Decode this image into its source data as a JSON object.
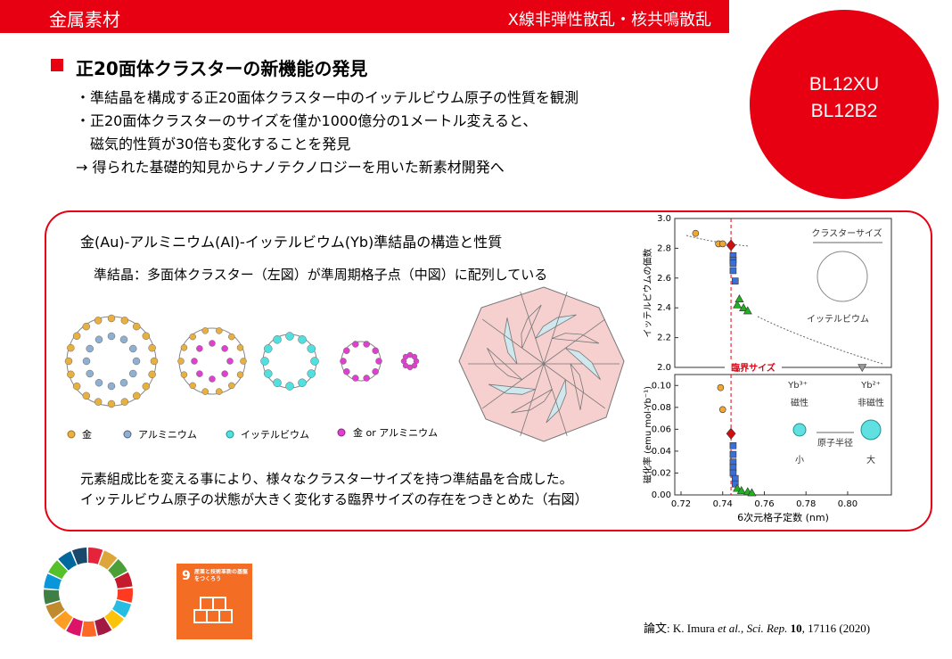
{
  "header": {
    "category": "金属素材",
    "technique": "X線非弾性散乱・核共鳴散乱"
  },
  "badge": {
    "lines": [
      "BL12XU",
      "BL12B2"
    ]
  },
  "heading": "正20面体クラスターの新機能の発見",
  "bullets": [
    "・準結晶を構成する正20面体クラスター中のイッテルビウム原子の性質を観測",
    "・正20面体クラスターのサイズを僅か1000億分の1メートル変えると、",
    "　磁気的性質が30倍も変化することを発見",
    "→ 得られた基礎的知見からナノテクノロジーを用いた新素材開発へ"
  ],
  "panel": {
    "title": "金(Au)-アルミニウム(Al)-イッテルビウム(Yb)準結晶の構造と性質",
    "subtitle": "準結晶：多面体クラスター（左図）が準周期格子点（中図）に配列している",
    "legend": [
      "金",
      "アルミニウム",
      "イッテルビウム",
      "金 or アルミニウム"
    ],
    "notes": [
      "元素組成比を変える事により、様々なクラスターサイズを持つ準結晶を合成した。",
      "イッテルビウム原子の状態が大きく変化する臨界サイズの存在をつきとめた（右図）"
    ]
  },
  "chart_data": [
    {
      "type": "scatter",
      "ylabel": "イッテルビウムの価数",
      "xlim": [
        0.717,
        0.821
      ],
      "ylim": [
        2.0,
        3.0
      ],
      "yticks": [
        {
          "value": 2.0,
          "label": "2.0"
        },
        2.2,
        2.4,
        2.6,
        2.8,
        {
          "value": 3.0,
          "label": "3.0"
        }
      ],
      "vline": 0.744,
      "annotations": [
        "臨界サイズ",
        "クラスターサイズ",
        "イッテルビウム"
      ],
      "series": [
        {
          "marker": "circle",
          "color": "#f0a830",
          "x": [
            0.727,
            0.738,
            0.74
          ],
          "values": [
            2.9,
            2.83,
            2.83
          ]
        },
        {
          "marker": "diamond",
          "color": "#d01010",
          "x": [
            0.744
          ],
          "values": [
            2.82
          ]
        },
        {
          "marker": "square",
          "color": "#3a6fd8",
          "x": [
            0.745,
            0.745,
            0.745,
            0.745,
            0.746
          ],
          "values": [
            2.75,
            2.72,
            2.7,
            2.65,
            2.58
          ]
        },
        {
          "marker": "triangle",
          "color": "#20b020",
          "x": [
            0.747,
            0.748,
            0.75,
            0.752
          ],
          "values": [
            2.42,
            2.46,
            2.4,
            2.38
          ]
        },
        {
          "marker": "triangle-down",
          "color": "#999999",
          "x": [
            0.807
          ],
          "values": [
            2.0
          ]
        }
      ]
    },
    {
      "type": "scatter",
      "ylabel": "磁化率 (emu mol-Yb⁻¹)",
      "xlabel": "6次元格子定数 (nm)",
      "xlim": [
        0.717,
        0.821
      ],
      "ylim": [
        0,
        0.11
      ],
      "xticks": [
        0.72,
        0.74,
        0.76,
        0.78,
        {
          "value": 0.8,
          "label": "0.80"
        }
      ],
      "yticks": [
        {
          "value": 0,
          "label": "0.00"
        },
        0.02,
        0.04,
        0.06,
        0.08,
        {
          "value": 0.1,
          "label": "0.10"
        }
      ],
      "vline": 0.744,
      "annotations": [
        "Yb³⁺",
        "Yb²⁺",
        "磁性",
        "非磁性",
        "原子半径",
        "小",
        "大"
      ],
      "series": [
        {
          "marker": "circle",
          "color": "#f0a830",
          "x": [
            0.739,
            0.74
          ],
          "values": [
            0.098,
            0.078
          ]
        },
        {
          "marker": "diamond",
          "color": "#d01010",
          "x": [
            0.744
          ],
          "values": [
            0.056
          ]
        },
        {
          "marker": "square",
          "color": "#3a6fd8",
          "x": [
            0.745,
            0.745,
            0.745,
            0.745,
            0.745,
            0.746,
            0.746
          ],
          "values": [
            0.045,
            0.037,
            0.03,
            0.025,
            0.02,
            0.015,
            0.01
          ]
        },
        {
          "marker": "triangle",
          "color": "#20b020",
          "x": [
            0.747,
            0.749,
            0.752,
            0.754
          ],
          "values": [
            0.006,
            0.004,
            0.003,
            0.002
          ]
        }
      ]
    }
  ],
  "sdg": {
    "number": "9",
    "text": "産業と技術革新の基盤をつくろう"
  },
  "citation": {
    "prefix": "論文:",
    "authors": "K.  Imura",
    "etal": "et al.,",
    "journal": "Sci. Rep.",
    "volume": "10",
    "rest": ", 17116 (2020)"
  }
}
